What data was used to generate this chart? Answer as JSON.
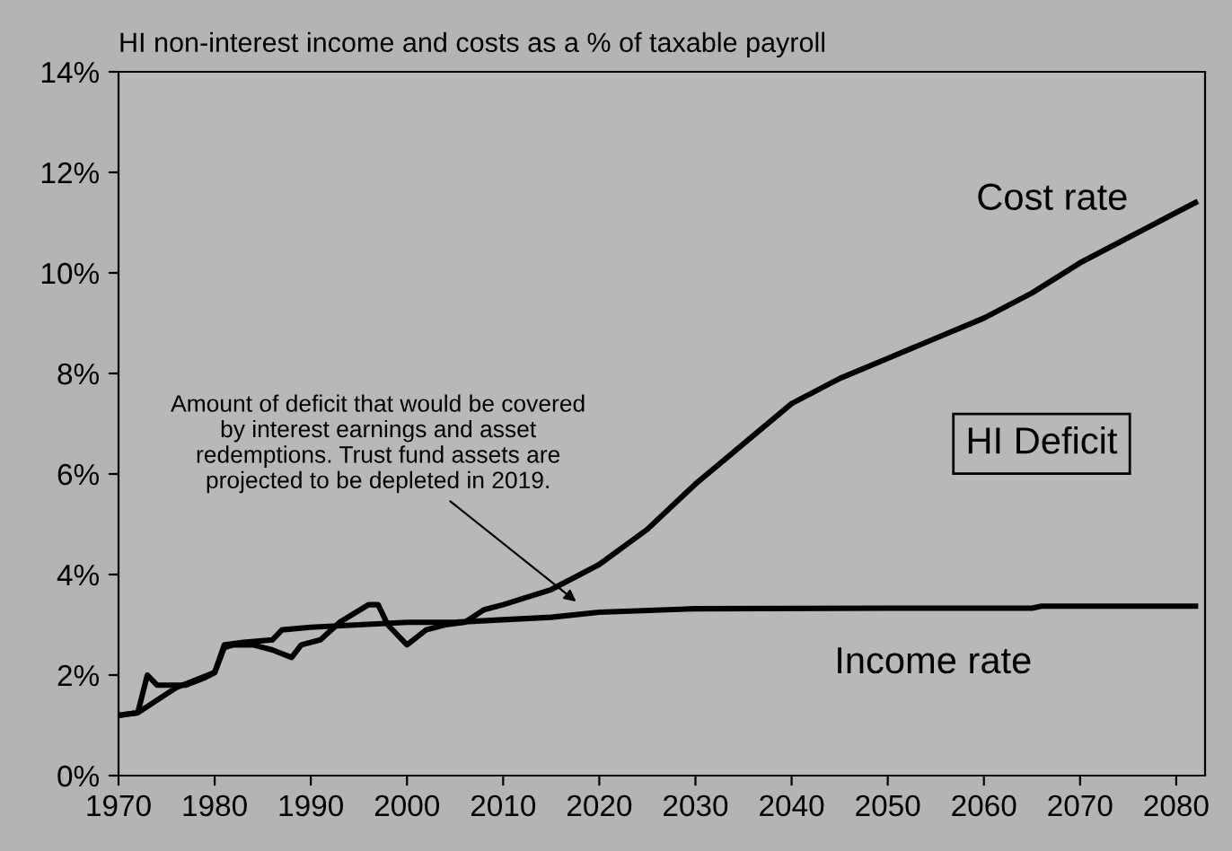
{
  "chart_data": {
    "type": "line",
    "title": "HI non-interest income and costs as a % of taxable payroll",
    "xlim": [
      1970,
      2083
    ],
    "xticks": [
      1970,
      1980,
      1990,
      2000,
      2010,
      2020,
      2030,
      2040,
      2050,
      2060,
      2070,
      2080
    ],
    "ylim": [
      0,
      14
    ],
    "yticks": [
      {
        "value": 0,
        "label": "0%"
      },
      {
        "value": 2,
        "label": "2%"
      },
      {
        "value": 4,
        "label": "4%"
      },
      {
        "value": 6,
        "label": "6%"
      },
      {
        "value": 8,
        "label": "8%"
      },
      {
        "value": 10,
        "label": "10%"
      },
      {
        "value": 12,
        "label": "12%"
      },
      {
        "value": 14,
        "label": "14%"
      }
    ],
    "grid": false,
    "legend": false,
    "marker": "none",
    "line_style": "solid",
    "series": [
      {
        "name": "Cost rate",
        "color": "#000000",
        "x": [
          1970,
          1972,
          1973,
          1974,
          1977,
          1979,
          1980,
          1981,
          1982,
          1984,
          1986,
          1988,
          1989,
          1991,
          1993,
          1996,
          1997,
          1998,
          2000,
          2002,
          2004,
          2006,
          2008,
          2010,
          2015,
          2018,
          2020,
          2025,
          2030,
          2035,
          2040,
          2045,
          2050,
          2055,
          2060,
          2065,
          2070,
          2075,
          2080,
          2082
        ],
        "values": [
          1.2,
          1.25,
          2.0,
          1.8,
          1.8,
          1.95,
          2.05,
          2.55,
          2.6,
          2.6,
          2.5,
          2.35,
          2.6,
          2.7,
          3.05,
          3.4,
          3.4,
          3.0,
          2.6,
          2.9,
          3.0,
          3.05,
          3.3,
          3.4,
          3.7,
          4.0,
          4.2,
          4.9,
          5.8,
          6.6,
          7.4,
          7.9,
          8.3,
          8.7,
          9.1,
          9.6,
          10.2,
          10.7,
          11.2,
          11.4
        ]
      },
      {
        "name": "Income rate",
        "color": "#000000",
        "x": [
          1970,
          1972,
          1974,
          1976,
          1978,
          1980,
          1981,
          1983,
          1986,
          1987,
          1990,
          1995,
          2000,
          2005,
          2010,
          2015,
          2020,
          2030,
          2050,
          2065,
          2066,
          2082
        ],
        "values": [
          1.2,
          1.25,
          1.5,
          1.75,
          1.9,
          2.05,
          2.6,
          2.65,
          2.7,
          2.9,
          2.95,
          3.0,
          3.05,
          3.05,
          3.1,
          3.15,
          3.25,
          3.32,
          3.33,
          3.33,
          3.37,
          3.37
        ]
      }
    ],
    "annotations": [
      {
        "text": "Amount of deficit that would be covered\nby interest earnings and asset\nredemptions. Trust fund assets are\nprojected to be depleted in 2019.",
        "x": 2018,
        "y": 3.4
      },
      "HI Deficit"
    ]
  }
}
